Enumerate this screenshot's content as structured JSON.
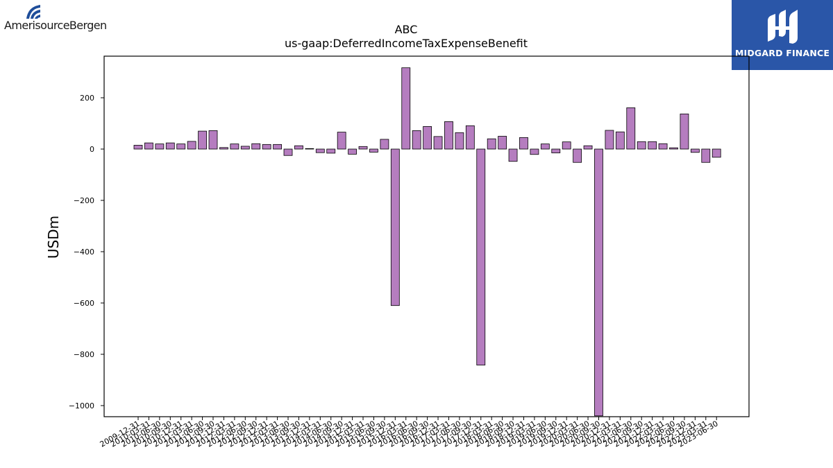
{
  "logos": {
    "left": {
      "text": "AmerisourceBergen",
      "icon": "amerisourcebergen-swirl-icon"
    },
    "right": {
      "text": "MIDGARD FINANCE",
      "icon": "midgard-mark-icon",
      "background": "#2a56a8"
    }
  },
  "chart_data": {
    "type": "bar",
    "title": "ABC",
    "subtitle": "us-gaap:DeferredIncomeTaxExpenseBenefit",
    "xlabel": "",
    "ylabel": "USDm",
    "ylim": [
      -1040,
      340
    ],
    "yticks": [
      200,
      0,
      -200,
      -400,
      -600,
      -800,
      -1000
    ],
    "ytick_labels": [
      "200",
      "0",
      "−200",
      "−400",
      "−600",
      "−800",
      "−1000"
    ],
    "grid": false,
    "bar_color": "#b57dbf",
    "edge_color": "#000000",
    "categories": [
      "2009-12-31",
      "2010-03-31",
      "2010-06-30",
      "2010-09-30",
      "2010-12-31",
      "2011-03-31",
      "2011-06-30",
      "2011-09-30",
      "2011-12-31",
      "2012-03-31",
      "2012-06-30",
      "2012-09-30",
      "2012-12-31",
      "2013-03-31",
      "2013-06-30",
      "2013-09-30",
      "2013-12-31",
      "2014-03-31",
      "2014-06-30",
      "2014-09-30",
      "2014-12-31",
      "2015-03-31",
      "2015-06-30",
      "2015-09-30",
      "2015-12-31",
      "2016-03-31",
      "2016-06-30",
      "2016-09-30",
      "2016-12-31",
      "2017-03-31",
      "2017-06-30",
      "2017-09-30",
      "2017-12-31",
      "2018-03-31",
      "2018-06-30",
      "2018-09-30",
      "2018-12-31",
      "2019-03-31",
      "2019-06-30",
      "2019-09-30",
      "2019-12-31",
      "2020-03-31",
      "2020-06-30",
      "2020-09-30",
      "2020-12-31",
      "2021-03-31",
      "2021-06-30",
      "2021-09-30",
      "2021-12-31",
      "2022-03-31",
      "2022-06-30",
      "2022-09-30",
      "2022-12-31",
      "2023-03-31",
      "2023-06-30"
    ],
    "values": [
      15,
      24,
      20,
      24,
      20,
      30,
      70,
      72,
      6,
      20,
      11,
      21,
      18,
      18,
      -25,
      13,
      2,
      -14,
      -16,
      66,
      -20,
      10,
      -12,
      38,
      -610,
      317,
      72,
      88,
      49,
      107,
      64,
      91,
      -842,
      40,
      50,
      -48,
      45,
      -21,
      20,
      -15,
      28,
      -52,
      13,
      -1040,
      73,
      67,
      161,
      29,
      29,
      21,
      5,
      137,
      -13,
      -52,
      -32
    ]
  }
}
